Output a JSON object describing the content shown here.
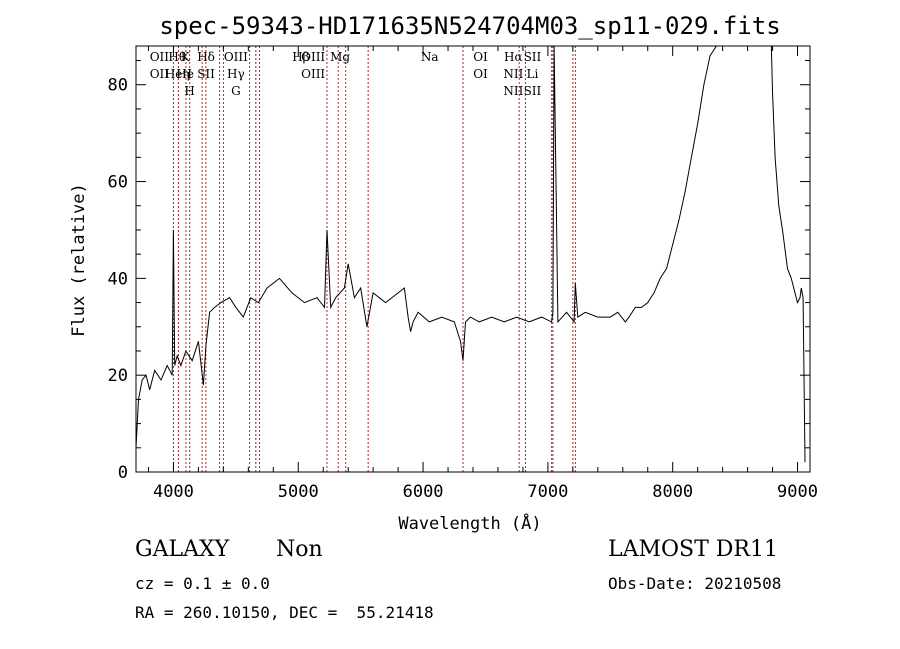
{
  "title": "spec-59343-HD171635N524704M03_sp11-029.fits",
  "info": {
    "class": "GALAXY",
    "subclass": "Non",
    "survey": "LAMOST DR11",
    "cz": "cz = 0.1 ± 0.0",
    "obs_date": "Obs-Date: 20210508",
    "radec": "RA = 260.10150, DEC =  55.21418"
  },
  "chart_data": {
    "type": "line",
    "xlabel": "Wavelength (Å)",
    "ylabel": "Flux (relative)",
    "xlim": [
      3700,
      9100
    ],
    "ylim": [
      0,
      88
    ],
    "xticks": [
      4000,
      5000,
      6000,
      7000,
      8000,
      9000
    ],
    "yticks": [
      0,
      20,
      40,
      60,
      80
    ],
    "series": [
      {
        "color": "#000000",
        "x": [
          3700,
          3720,
          3750,
          3780,
          3810,
          3850,
          3900,
          3950,
          3990,
          4000,
          4010,
          4030,
          4060,
          4100,
          4150,
          4200,
          4240,
          4260,
          4290,
          4330,
          4380,
          4450,
          4500,
          4560,
          4620,
          4680,
          4750,
          4850,
          4950,
          5050,
          5150,
          5210,
          5230,
          5260,
          5300,
          5370,
          5400,
          5450,
          5500,
          5550,
          5600,
          5700,
          5800,
          5850,
          5880,
          5900,
          5920,
          5960,
          6050,
          6150,
          6250,
          6300,
          6320,
          6340,
          6380,
          6450,
          6550,
          6650,
          6750,
          6850,
          6950,
          7030,
          7040,
          7050,
          7065,
          7080,
          7150,
          7210,
          7220,
          7240,
          7300,
          7400,
          7500,
          7560,
          7620,
          7650,
          7700,
          7750,
          7800,
          7850,
          7900,
          7950,
          8000,
          8050,
          8100,
          8150,
          8200,
          8250,
          8300,
          8350,
          8400,
          8450,
          8500,
          8550,
          8600,
          8650,
          8700,
          8750,
          8790,
          8800,
          8820,
          8850,
          8880,
          8900,
          8920,
          8950,
          8980,
          9000,
          9020,
          9030,
          9045,
          9060
        ],
        "y": [
          5,
          15,
          19,
          20,
          17,
          21,
          19,
          22,
          20,
          50,
          22,
          24,
          22,
          25,
          23,
          27,
          18,
          26,
          33,
          34,
          35,
          36,
          34,
          32,
          36,
          35,
          38,
          40,
          37,
          35,
          36,
          34,
          50,
          34,
          36,
          38,
          43,
          36,
          38,
          30,
          37,
          35,
          37,
          38,
          32,
          29,
          31,
          33,
          31,
          32,
          31,
          27,
          23,
          31,
          32,
          31,
          32,
          31,
          32,
          31,
          32,
          31,
          33,
          88,
          60,
          31,
          33,
          31,
          39,
          32,
          33,
          32,
          32,
          33,
          31,
          32,
          34,
          34,
          35,
          37,
          40,
          42,
          47,
          52,
          58,
          65,
          72,
          80,
          86,
          88,
          88,
          88,
          88,
          88,
          88,
          88,
          88,
          88,
          88,
          78,
          65,
          55,
          50,
          46,
          42,
          40,
          37,
          35,
          36,
          38,
          36,
          2
        ]
      }
    ],
    "emission_lines": [
      {
        "x": 3727,
        "labels": [
          "OII",
          "OII"
        ]
      },
      {
        "x": 3870,
        "labels": [
          "Hθ",
          "Heη"
        ]
      },
      {
        "x": 3934,
        "labels": [
          "K",
          "He",
          ""
        ]
      },
      {
        "x": 3969,
        "labels": [
          "",
          "I",
          "H"
        ]
      },
      {
        "x": 4101,
        "labels": [
          "Hδ",
          "SII"
        ]
      },
      {
        "x": 4340,
        "labels": [
          "OIII",
          "Hγ",
          "G"
        ]
      },
      {
        "x": 4861,
        "labels": [
          "Hβ"
        ]
      },
      {
        "x": 4959,
        "labels": [
          "OIII",
          "OIII"
        ]
      },
      {
        "x": 5175,
        "labels": [
          "Mg"
        ]
      },
      {
        "x": 5893,
        "labels": [
          "Na"
        ]
      },
      {
        "x": 6300,
        "labels": [
          "OI",
          "OI"
        ]
      },
      {
        "x": 6563,
        "labels": [
          "Hα",
          "NII",
          "NII"
        ]
      },
      {
        "x": 6716,
        "labels": [
          "SII",
          "Li",
          "SII"
        ]
      }
    ],
    "line_marks": [
      4000,
      4040,
      4100,
      4130,
      4230,
      4260,
      4370,
      4400,
      4610,
      4660,
      4690,
      5230,
      5320,
      5380,
      5560,
      6320,
      6770,
      6820,
      7030,
      7040,
      7200,
      7220
    ]
  }
}
